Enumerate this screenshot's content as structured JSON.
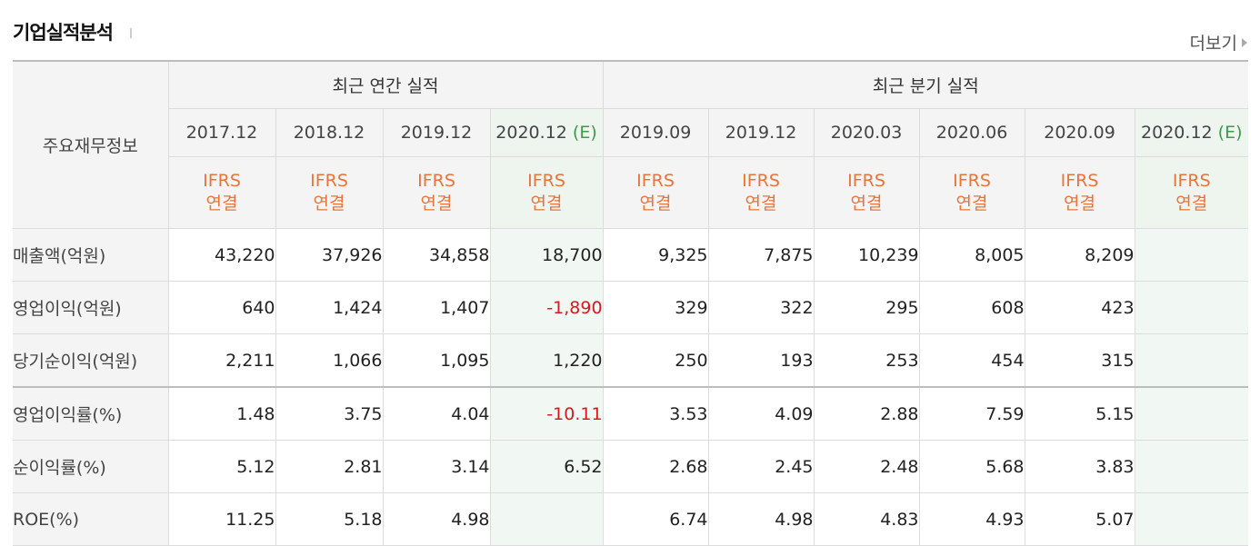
{
  "section": {
    "title": "기업실적분석",
    "more_label": "더보기"
  },
  "table": {
    "head_label": "주요재무정보",
    "annual_title": "최근 연간 실적",
    "quarter_title": "최근 분기 실적",
    "annual_periods": [
      {
        "label": "2017.12",
        "tag": ""
      },
      {
        "label": "2018.12",
        "tag": ""
      },
      {
        "label": "2019.12",
        "tag": ""
      },
      {
        "label": "2020.12",
        "tag": "(E)"
      }
    ],
    "quarter_periods": [
      {
        "label": "2019.09",
        "tag": ""
      },
      {
        "label": "2019.12",
        "tag": ""
      },
      {
        "label": "2020.03",
        "tag": ""
      },
      {
        "label": "2020.06",
        "tag": ""
      },
      {
        "label": "2020.09",
        "tag": ""
      },
      {
        "label": "2020.12",
        "tag": "(E)"
      }
    ],
    "ifrs_line1": "IFRS",
    "ifrs_line2": "연결",
    "rows": [
      {
        "label": "매출액(억원)",
        "annual": [
          "43,220",
          "37,926",
          "34,858",
          "18,700"
        ],
        "quarter": [
          "9,325",
          "7,875",
          "10,239",
          "8,005",
          "8,209",
          ""
        ]
      },
      {
        "label": "영업이익(억원)",
        "annual": [
          "640",
          "1,424",
          "1,407",
          "-1,890"
        ],
        "quarter": [
          "329",
          "322",
          "295",
          "608",
          "423",
          ""
        ]
      },
      {
        "label": "당기순이익(억원)",
        "annual": [
          "2,211",
          "1,066",
          "1,095",
          "1,220"
        ],
        "quarter": [
          "250",
          "193",
          "253",
          "454",
          "315",
          ""
        ]
      },
      {
        "label": "영업이익률(%)",
        "annual": [
          "1.48",
          "3.75",
          "4.04",
          "-10.11"
        ],
        "quarter": [
          "3.53",
          "4.09",
          "2.88",
          "7.59",
          "5.15",
          ""
        ]
      },
      {
        "label": "순이익률(%)",
        "annual": [
          "5.12",
          "2.81",
          "3.14",
          "6.52"
        ],
        "quarter": [
          "2.68",
          "2.45",
          "2.48",
          "5.68",
          "3.83",
          ""
        ]
      },
      {
        "label": "ROE(%)",
        "annual": [
          "11.25",
          "5.18",
          "4.98",
          ""
        ],
        "quarter": [
          "6.74",
          "4.98",
          "4.83",
          "4.93",
          "5.07",
          ""
        ]
      }
    ]
  },
  "colors": {
    "negative": "#d71920",
    "ifrs": "#e9743a",
    "estimate_tag": "#3d9a4d",
    "estimate_bg": "#f1f7f2"
  }
}
